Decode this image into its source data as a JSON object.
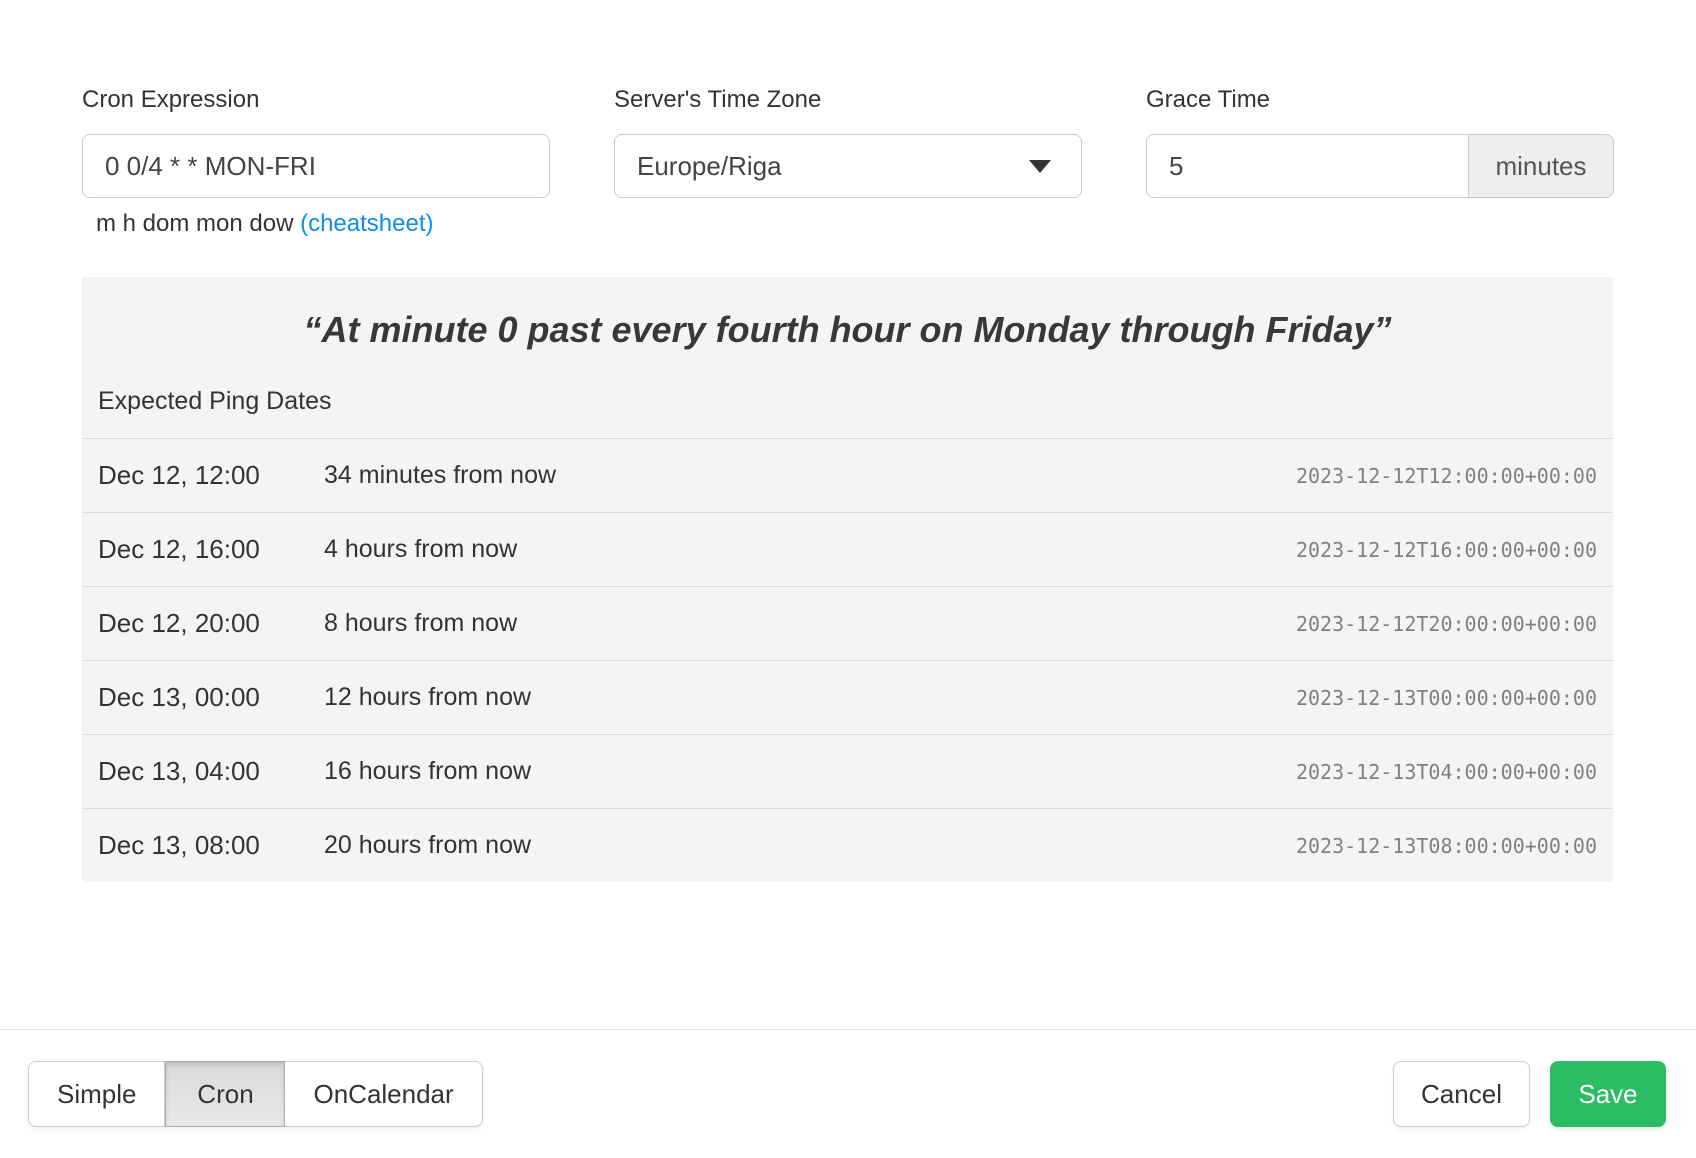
{
  "form": {
    "cron": {
      "label": "Cron Expression",
      "value": "0 0/4 * * MON-FRI",
      "help_text": "m h dom mon dow",
      "help_link": "(cheatsheet)"
    },
    "timezone": {
      "label": "Server's Time Zone",
      "selected": "Europe/Riga"
    },
    "grace": {
      "label": "Grace Time",
      "value": "5",
      "unit": "minutes"
    }
  },
  "preview": {
    "description": "“At minute 0 past every fourth hour on Monday through Friday”",
    "subtitle": "Expected Ping Dates",
    "rows": [
      {
        "local": "Dec 12, 12:00",
        "relative": "34 minutes from now",
        "iso": "2023-12-12T12:00:00+00:00"
      },
      {
        "local": "Dec 12, 16:00",
        "relative": "4 hours from now",
        "iso": "2023-12-12T16:00:00+00:00"
      },
      {
        "local": "Dec 12, 20:00",
        "relative": "8 hours from now",
        "iso": "2023-12-12T20:00:00+00:00"
      },
      {
        "local": "Dec 13, 00:00",
        "relative": "12 hours from now",
        "iso": "2023-12-13T00:00:00+00:00"
      },
      {
        "local": "Dec 13, 04:00",
        "relative": "16 hours from now",
        "iso": "2023-12-13T04:00:00+00:00"
      },
      {
        "local": "Dec 13, 08:00",
        "relative": "20 hours from now",
        "iso": "2023-12-13T08:00:00+00:00"
      }
    ]
  },
  "footer": {
    "modes": [
      {
        "label": "Simple",
        "active": false
      },
      {
        "label": "Cron",
        "active": true
      },
      {
        "label": "OnCalendar",
        "active": false
      }
    ],
    "cancel_label": "Cancel",
    "save_label": "Save"
  },
  "colors": {
    "accent_green": "#2bbd63",
    "link_blue": "#0d8eea",
    "panel_bg": "#f4f4f4"
  }
}
